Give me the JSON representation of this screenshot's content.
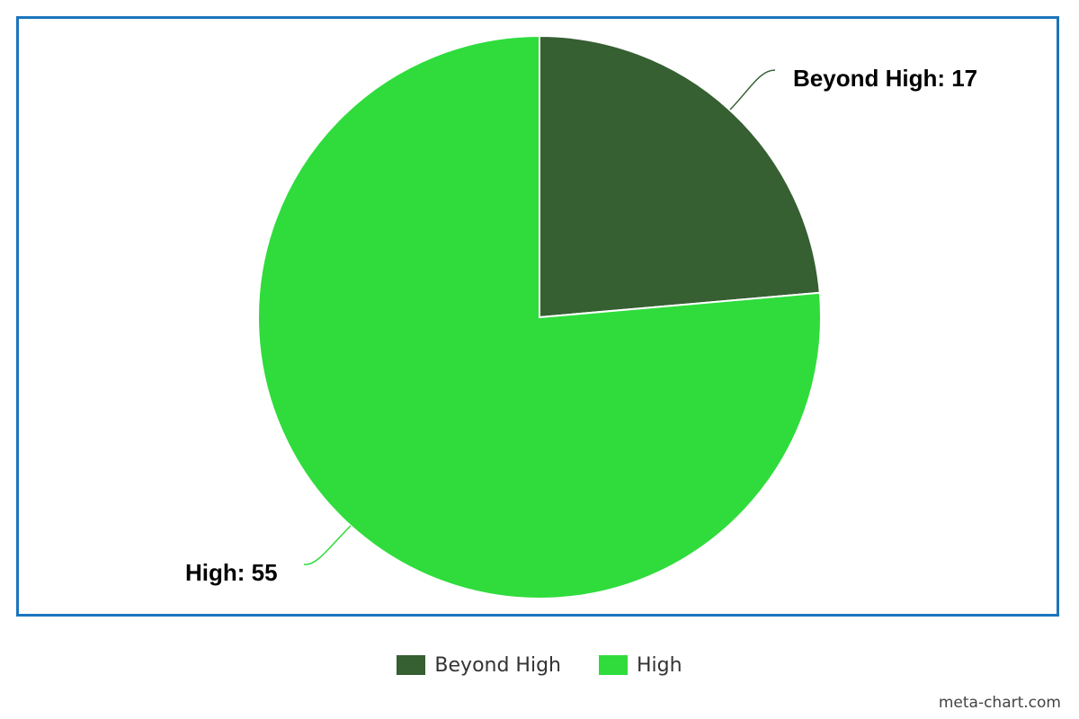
{
  "chart_data": {
    "type": "pie",
    "categories": [
      "Beyond High",
      "High"
    ],
    "values": [
      17,
      55
    ],
    "colors": [
      "#365f32",
      "#2fdc3c"
    ],
    "data_labels": [
      "Beyond High: 17",
      "High: 55"
    ],
    "legend": {
      "placement": "bottom-center",
      "entries": [
        "Beyond High",
        "High"
      ]
    },
    "title": ""
  },
  "watermark": "meta-chart.com",
  "colors": {
    "frame_border": "#1c75bc",
    "leader_line": "#365f32"
  }
}
